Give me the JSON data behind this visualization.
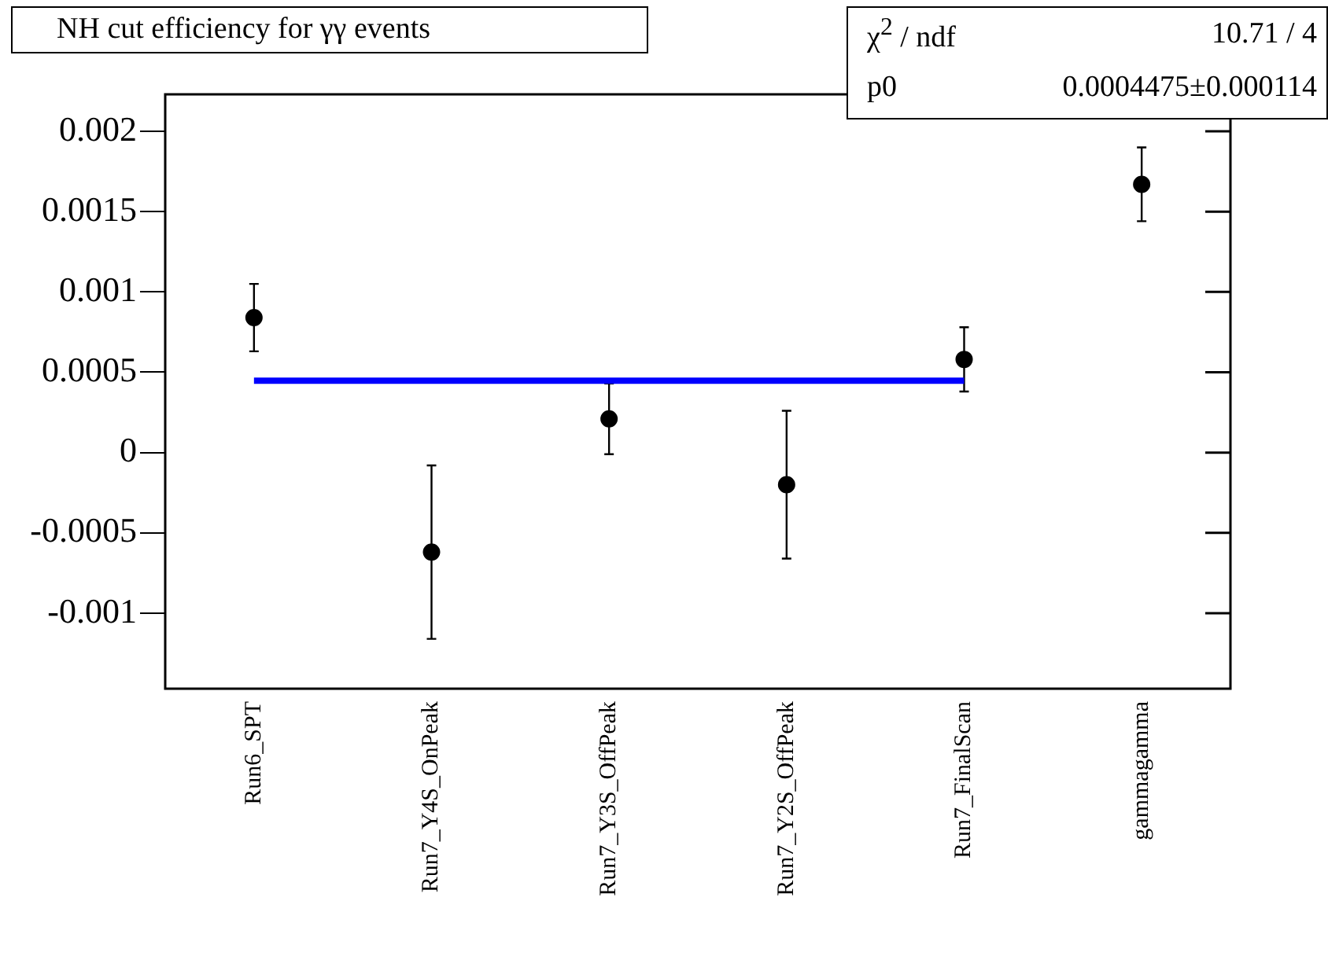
{
  "chart_data": {
    "type": "scatter",
    "title": "NH cut efficiency for γγ events",
    "categories": [
      "Run6_SPT",
      "Run7_Y4S_OnPeak",
      "Run7_Y3S_OffPeak",
      "Run7_Y2S_OffPeak",
      "Run7_FinalScan",
      "gammagamma"
    ],
    "series": [
      {
        "color": "#000000",
        "values": [
          0.00084,
          -0.00062,
          0.00021,
          -0.0002,
          0.00058,
          0.00167
        ],
        "errors": [
          0.00021,
          0.00054,
          0.00022,
          0.00046,
          0.0002,
          0.00023
        ]
      },
      {
        "type": "line",
        "marker": "none",
        "color": "#0000ff",
        "values": [
          0.0004475,
          0.0004475,
          0.0004475,
          0.0004475,
          0.0004475,
          null
        ]
      }
    ],
    "ylim": [
      -0.00147,
      0.00223
    ],
    "yticks": [
      -0.001,
      -0.0005,
      0,
      0.0005,
      0.001,
      0.0015,
      0.002
    ],
    "annotations": [
      "χ$^{2}$ / ndf",
      "10.71 / 4",
      "p0",
      "0.0004475±0.000114"
    ],
    "marker": "circle",
    "grid": false,
    "legend": false
  }
}
